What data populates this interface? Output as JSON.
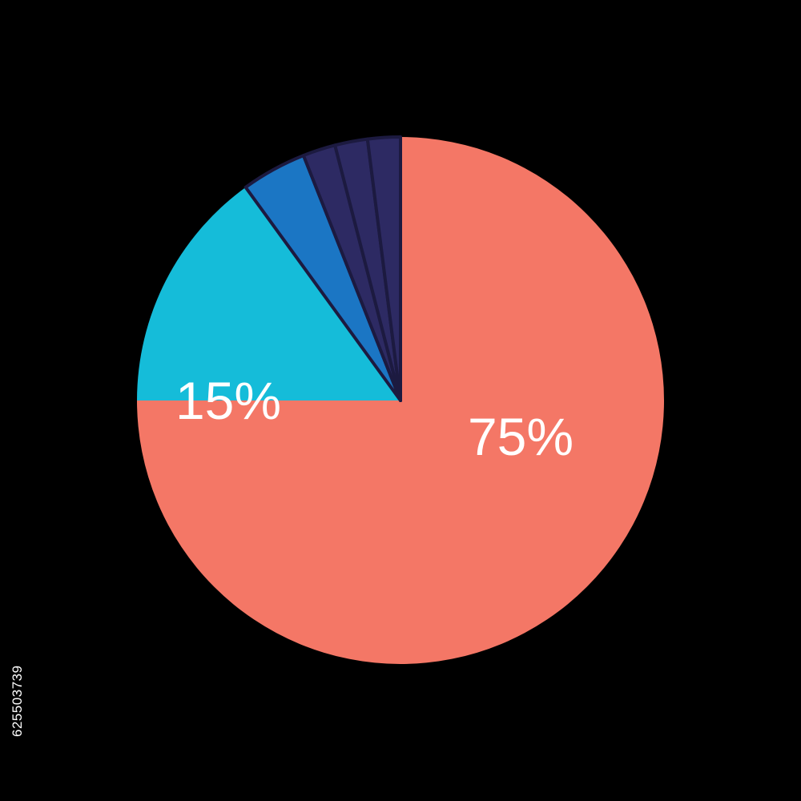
{
  "chart_data": {
    "type": "pie",
    "start": "12 o'clock",
    "direction": "clockwise",
    "slices": [
      {
        "value": 75,
        "label": "75%",
        "color": "#f47766"
      },
      {
        "value": 15,
        "label": "15%",
        "color": "#15bcd9"
      },
      {
        "value": 4,
        "label": "",
        "color": "#1b76c4"
      },
      {
        "value": 2,
        "label": "",
        "color": "#2d2a63"
      },
      {
        "value": 2,
        "label": "",
        "color": "#2d2a63"
      },
      {
        "value": 2,
        "label": "",
        "color": "#2d2a63"
      }
    ],
    "separator_color": "#1c1a40"
  },
  "watermark": "625503739",
  "background": "#000000"
}
